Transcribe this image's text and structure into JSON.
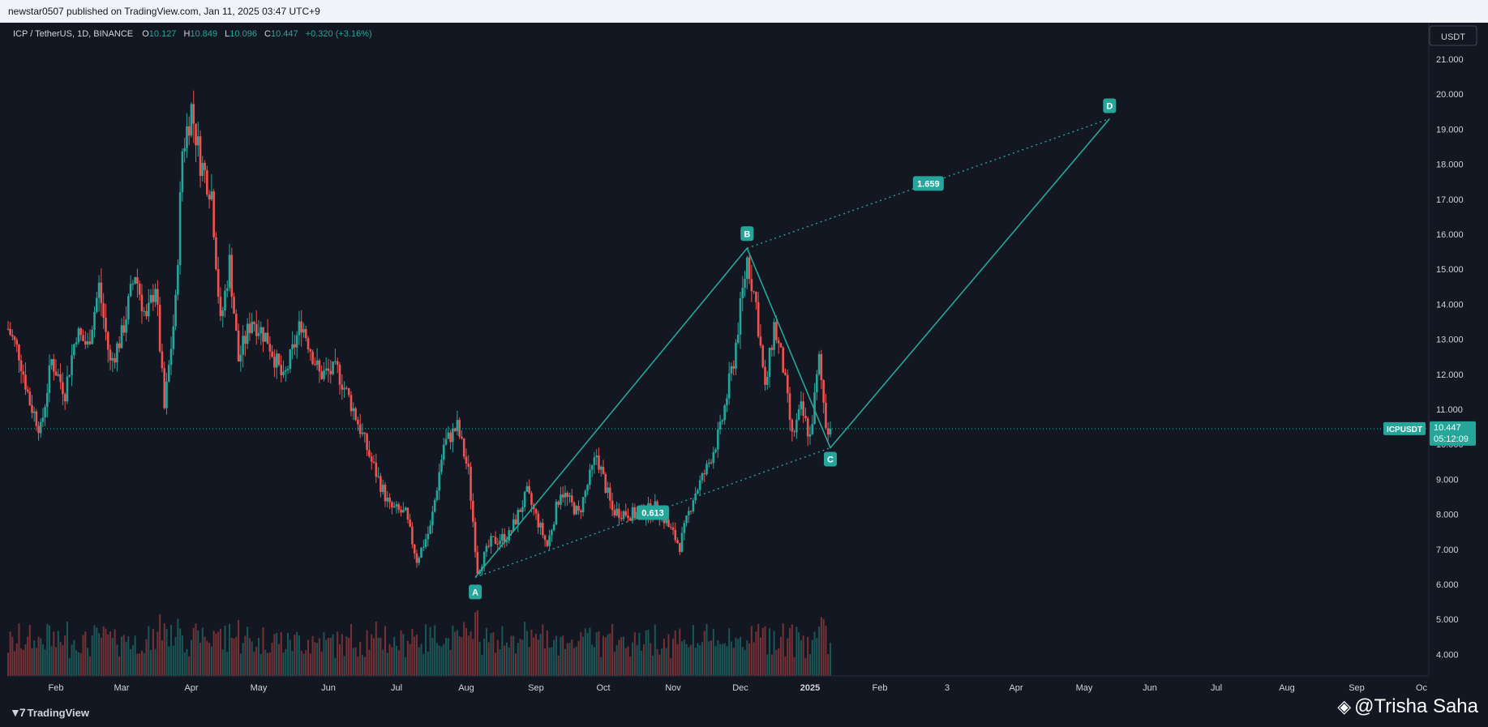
{
  "header": {
    "publish_line": "newstar0507 published on TradingView.com, Jan 11, 2025 03:47 UTC+9"
  },
  "legend": {
    "symbol": "ICP / TetherUS, 1D, BINANCE",
    "open_label": "O",
    "open": "10.127",
    "high_label": "H",
    "high": "10.849",
    "low_label": "L",
    "low": "10.096",
    "close_label": "C",
    "close": "10.447",
    "change": "+0.320 (+3.16%)"
  },
  "price_scale": {
    "currency": "USDT",
    "ticks": [
      "21.000",
      "20.000",
      "19.000",
      "18.000",
      "17.000",
      "16.000",
      "15.000",
      "14.000",
      "13.000",
      "12.000",
      "11.000",
      "10.000",
      "9.000",
      "8.000",
      "7.000",
      "6.000",
      "5.000",
      "4.000"
    ],
    "tag_symbol": "ICPUSDT",
    "tag_price": "10.447",
    "tag_countdown": "05:12:09"
  },
  "time_axis": {
    "labels": [
      "Feb",
      "Mar",
      "Apr",
      "May",
      "Jun",
      "Jul",
      "Aug",
      "Sep",
      "Oct",
      "Nov",
      "Dec",
      "2025",
      "Feb",
      "3",
      "Apr",
      "May",
      "Jun",
      "Jul",
      "Aug",
      "Sep",
      "Oc"
    ]
  },
  "pattern": {
    "points": [
      {
        "label": "A",
        "price": 6.2
      },
      {
        "label": "B",
        "price": 15.6
      },
      {
        "label": "C",
        "price": 9.9
      },
      {
        "label": "D",
        "price": 19.3
      }
    ],
    "ratio_bc": "0.613",
    "ratio_cd": "1.659"
  },
  "colors": {
    "background": "#131722",
    "up": "#26a69a",
    "down": "#ef5350",
    "pattern_line": "#26a69a",
    "tag_bg": "#26a69a",
    "grid_text": "#d1d4dc"
  },
  "chart_data": {
    "type": "candlestick",
    "title": "ICP / TetherUS, 1D, BINANCE",
    "xlabel": "",
    "ylabel": "",
    "ylim": [
      3.4,
      21.9
    ],
    "last_price": 10.447,
    "price_path": [
      {
        "date": "2024-01-10",
        "price": 13.3
      },
      {
        "date": "2024-01-15",
        "price": 12.6
      },
      {
        "date": "2024-01-20",
        "price": 11.2
      },
      {
        "date": "2024-01-25",
        "price": 10.4
      },
      {
        "date": "2024-01-30",
        "price": 12.4
      },
      {
        "date": "2024-02-05",
        "price": 11.5
      },
      {
        "date": "2024-02-10",
        "price": 13.2
      },
      {
        "date": "2024-02-15",
        "price": 12.8
      },
      {
        "date": "2024-02-20",
        "price": 14.5
      },
      {
        "date": "2024-02-25",
        "price": 12.3
      },
      {
        "date": "2024-03-01",
        "price": 13.1
      },
      {
        "date": "2024-03-07",
        "price": 14.9
      },
      {
        "date": "2024-03-12",
        "price": 13.5
      },
      {
        "date": "2024-03-16",
        "price": 14.6
      },
      {
        "date": "2024-03-20",
        "price": 11.0
      },
      {
        "date": "2024-03-25",
        "price": 14.0
      },
      {
        "date": "2024-03-28",
        "price": 18.4
      },
      {
        "date": "2024-04-01",
        "price": 19.6
      },
      {
        "date": "2024-04-05",
        "price": 18.1
      },
      {
        "date": "2024-04-10",
        "price": 17.2
      },
      {
        "date": "2024-04-14",
        "price": 13.4
      },
      {
        "date": "2024-04-18",
        "price": 15.2
      },
      {
        "date": "2024-04-22",
        "price": 12.4
      },
      {
        "date": "2024-04-28",
        "price": 13.6
      },
      {
        "date": "2024-05-05",
        "price": 13.0
      },
      {
        "date": "2024-05-12",
        "price": 11.8
      },
      {
        "date": "2024-05-20",
        "price": 13.5
      },
      {
        "date": "2024-05-28",
        "price": 12.0
      },
      {
        "date": "2024-06-05",
        "price": 12.1
      },
      {
        "date": "2024-06-12",
        "price": 11.0
      },
      {
        "date": "2024-06-20",
        "price": 9.5
      },
      {
        "date": "2024-06-28",
        "price": 8.2
      },
      {
        "date": "2024-07-05",
        "price": 8.0
      },
      {
        "date": "2024-07-10",
        "price": 6.7
      },
      {
        "date": "2024-07-16",
        "price": 7.6
      },
      {
        "date": "2024-07-22",
        "price": 10.0
      },
      {
        "date": "2024-07-28",
        "price": 10.5
      },
      {
        "date": "2024-08-02",
        "price": 9.2
      },
      {
        "date": "2024-08-06",
        "price": 6.4
      },
      {
        "date": "2024-08-12",
        "price": 7.2
      },
      {
        "date": "2024-08-20",
        "price": 7.4
      },
      {
        "date": "2024-08-28",
        "price": 8.6
      },
      {
        "date": "2024-09-06",
        "price": 7.1
      },
      {
        "date": "2024-09-12",
        "price": 8.7
      },
      {
        "date": "2024-09-20",
        "price": 8.0
      },
      {
        "date": "2024-09-28",
        "price": 9.7
      },
      {
        "date": "2024-10-05",
        "price": 8.1
      },
      {
        "date": "2024-10-15",
        "price": 8.0
      },
      {
        "date": "2024-10-25",
        "price": 8.2
      },
      {
        "date": "2024-11-04",
        "price": 7.1
      },
      {
        "date": "2024-11-10",
        "price": 8.5
      },
      {
        "date": "2024-11-16",
        "price": 9.3
      },
      {
        "date": "2024-11-22",
        "price": 10.4
      },
      {
        "date": "2024-11-28",
        "price": 12.4
      },
      {
        "date": "2024-12-04",
        "price": 15.3
      },
      {
        "date": "2024-12-08",
        "price": 14.0
      },
      {
        "date": "2024-12-12",
        "price": 11.5
      },
      {
        "date": "2024-12-16",
        "price": 13.4
      },
      {
        "date": "2024-12-20",
        "price": 12.2
      },
      {
        "date": "2024-12-24",
        "price": 10.2
      },
      {
        "date": "2024-12-28",
        "price": 11.0
      },
      {
        "date": "2025-01-01",
        "price": 10.2
      },
      {
        "date": "2025-01-05",
        "price": 12.4
      },
      {
        "date": "2025-01-08",
        "price": 10.6
      },
      {
        "date": "2025-01-10",
        "price": 10.447
      }
    ],
    "volume_level": "relative",
    "pattern_points": [
      {
        "label": "A",
        "date": "2024-08-05",
        "price": 6.2
      },
      {
        "label": "B",
        "date": "2024-12-04",
        "price": 15.6
      },
      {
        "label": "C",
        "date": "2025-01-10",
        "price": 9.9
      },
      {
        "label": "D",
        "date": "2025-05-13",
        "price": 19.3
      }
    ],
    "ratios": [
      {
        "label": "0.613",
        "between": "A-B-C"
      },
      {
        "label": "1.659",
        "between": "B-C-D"
      }
    ]
  }
}
